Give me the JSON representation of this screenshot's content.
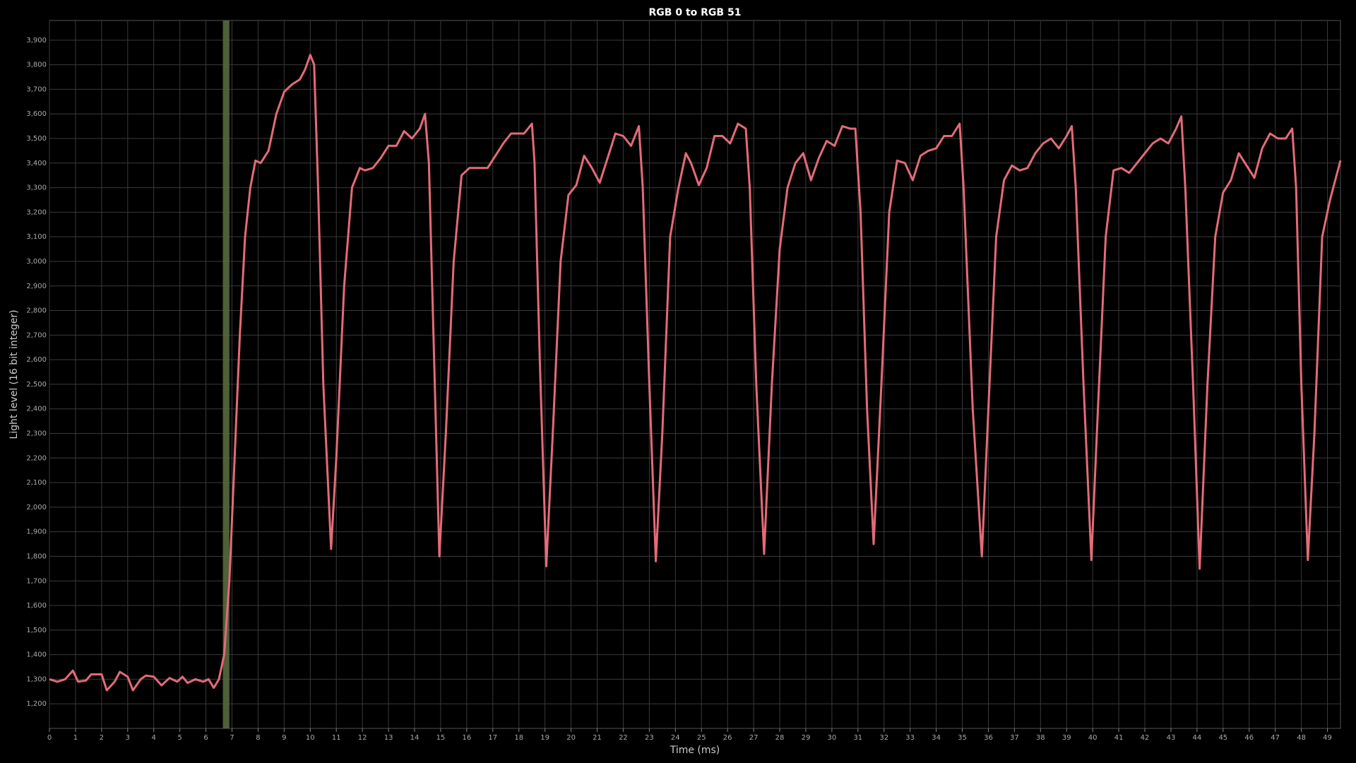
{
  "chart_data": {
    "type": "line",
    "title": "RGB 0 to RGB 51",
    "xlabel": "Time (ms)",
    "ylabel": "Light level (16 bit integer)",
    "x": [
      0,
      0.3,
      0.6,
      0.9,
      1.1,
      1.4,
      1.6,
      2.0,
      2.2,
      2.5,
      2.7,
      3.0,
      3.2,
      3.5,
      3.7,
      4.0,
      4.3,
      4.6,
      4.9,
      5.1,
      5.3,
      5.6,
      5.9,
      6.1,
      6.3,
      6.5,
      6.7,
      6.9,
      7.1,
      7.3,
      7.5,
      7.7,
      7.9,
      8.1,
      8.4,
      8.7,
      9.0,
      9.3,
      9.6,
      9.8,
      10.0,
      10.15,
      10.3,
      10.5,
      10.8,
      11.0,
      11.3,
      11.6,
      11.9,
      12.1,
      12.4,
      12.7,
      13.0,
      13.3,
      13.6,
      13.9,
      14.2,
      14.4,
      14.55,
      14.75,
      14.95,
      15.2,
      15.5,
      15.8,
      16.1,
      16.4,
      16.8,
      17.1,
      17.4,
      17.7,
      18.0,
      18.2,
      18.5,
      18.6,
      18.8,
      19.05,
      19.3,
      19.6,
      19.9,
      20.2,
      20.5,
      20.8,
      21.1,
      21.4,
      21.7,
      22.0,
      22.3,
      22.6,
      22.75,
      23.0,
      23.25,
      23.5,
      23.8,
      24.1,
      24.4,
      24.6,
      24.9,
      25.2,
      25.5,
      25.8,
      26.1,
      26.4,
      26.7,
      26.85,
      27.1,
      27.4,
      27.7,
      28.0,
      28.3,
      28.6,
      28.9,
      29.2,
      29.5,
      29.8,
      30.1,
      30.4,
      30.7,
      30.9,
      31.1,
      31.35,
      31.6,
      31.9,
      32.2,
      32.5,
      32.8,
      33.1,
      33.4,
      33.7,
      34.0,
      34.3,
      34.6,
      34.9,
      35.05,
      35.4,
      35.75,
      36.0,
      36.3,
      36.6,
      36.9,
      37.2,
      37.5,
      37.8,
      38.1,
      38.4,
      38.7,
      39.0,
      39.2,
      39.35,
      39.65,
      39.95,
      40.2,
      40.5,
      40.8,
      41.1,
      41.4,
      41.7,
      42.0,
      42.3,
      42.6,
      42.9,
      43.2,
      43.4,
      43.55,
      43.85,
      44.1,
      44.4,
      44.7,
      45.0,
      45.3,
      45.6,
      45.9,
      46.2,
      46.5,
      46.8,
      47.1,
      47.4,
      47.65,
      47.8,
      48.0,
      48.25,
      48.5,
      48.8,
      49.1,
      49.5
    ],
    "series": [
      {
        "name": "Light level",
        "color": "#e46b78",
        "values": [
          1300,
          1290,
          1300,
          1335,
          1290,
          1295,
          1320,
          1320,
          1255,
          1290,
          1330,
          1310,
          1255,
          1300,
          1315,
          1310,
          1275,
          1305,
          1290,
          1310,
          1285,
          1300,
          1290,
          1300,
          1265,
          1300,
          1400,
          1700,
          2200,
          2700,
          3100,
          3300,
          3410,
          3400,
          3450,
          3600,
          3690,
          3720,
          3740,
          3780,
          3840,
          3800,
          3300,
          2500,
          1830,
          2200,
          2900,
          3300,
          3380,
          3370,
          3380,
          3420,
          3470,
          3470,
          3530,
          3500,
          3540,
          3600,
          3400,
          2600,
          1800,
          2300,
          3000,
          3350,
          3380,
          3380,
          3380,
          3430,
          3480,
          3520,
          3520,
          3520,
          3560,
          3400,
          2600,
          1760,
          2300,
          3000,
          3270,
          3310,
          3430,
          3380,
          3320,
          3420,
          3520,
          3510,
          3470,
          3550,
          3300,
          2500,
          1780,
          2300,
          3100,
          3290,
          3440,
          3400,
          3310,
          3380,
          3510,
          3510,
          3480,
          3560,
          3540,
          3300,
          2500,
          1810,
          2500,
          3050,
          3300,
          3400,
          3440,
          3330,
          3420,
          3490,
          3470,
          3550,
          3540,
          3540,
          3200,
          2400,
          1850,
          2500,
          3200,
          3410,
          3400,
          3330,
          3430,
          3450,
          3460,
          3510,
          3510,
          3560,
          3300,
          2400,
          1800,
          2400,
          3100,
          3330,
          3390,
          3370,
          3380,
          3440,
          3480,
          3500,
          3460,
          3510,
          3550,
          3300,
          2500,
          1785,
          2400,
          3100,
          3370,
          3380,
          3360,
          3400,
          3440,
          3480,
          3500,
          3480,
          3540,
          3590,
          3300,
          2500,
          1750,
          2500,
          3100,
          3280,
          3330,
          3440,
          3390,
          3340,
          3460,
          3520,
          3500,
          3500,
          3540,
          3300,
          2500,
          1785,
          2300,
          3100,
          3250,
          3410
        ]
      }
    ],
    "highlight": {
      "xrange": [
        6.65,
        6.9
      ],
      "color": "#566b3c"
    },
    "xlim": [
      0,
      49.5
    ],
    "ylim": [
      1100,
      3980
    ],
    "grid": true,
    "xticks": [
      0,
      1,
      2,
      3,
      4,
      5,
      6,
      7,
      8,
      9,
      10,
      11,
      12,
      13,
      14,
      15,
      16,
      17,
      18,
      19,
      20,
      21,
      22,
      23,
      24,
      25,
      26,
      27,
      28,
      29,
      30,
      31,
      32,
      33,
      34,
      35,
      36,
      37,
      38,
      39,
      40,
      41,
      42,
      43,
      44,
      45,
      46,
      47,
      48,
      49
    ],
    "yticks": [
      {
        "value": 1200,
        "label": "1,200"
      },
      {
        "value": 1300,
        "label": "1,300"
      },
      {
        "value": 1400,
        "label": "1,400"
      },
      {
        "value": 1500,
        "label": "1,500"
      },
      {
        "value": 1600,
        "label": "1,600"
      },
      {
        "value": 1700,
        "label": "1,700"
      },
      {
        "value": 1800,
        "label": "1,800"
      },
      {
        "value": 1900,
        "label": "1,900"
      },
      {
        "value": 2000,
        "label": "2,000"
      },
      {
        "value": 2100,
        "label": "2,100"
      },
      {
        "value": 2200,
        "label": "2,200"
      },
      {
        "value": 2300,
        "label": "2,300"
      },
      {
        "value": 2400,
        "label": "2,400"
      },
      {
        "value": 2500,
        "label": "2,500"
      },
      {
        "value": 2600,
        "label": "2,600"
      },
      {
        "value": 2700,
        "label": "2,700"
      },
      {
        "value": 2800,
        "label": "2,800"
      },
      {
        "value": 2900,
        "label": "2,900"
      },
      {
        "value": 3000,
        "label": "3,000"
      },
      {
        "value": 3100,
        "label": "3,100"
      },
      {
        "value": 3200,
        "label": "3,200"
      },
      {
        "value": 3300,
        "label": "3,300"
      },
      {
        "value": 3400,
        "label": "3,400"
      },
      {
        "value": 3500,
        "label": "3,500"
      },
      {
        "value": 3600,
        "label": "3,600"
      },
      {
        "value": 3700,
        "label": "3,700"
      },
      {
        "value": 3800,
        "label": "3,800"
      },
      {
        "value": 3900,
        "label": "3,900"
      }
    ]
  }
}
